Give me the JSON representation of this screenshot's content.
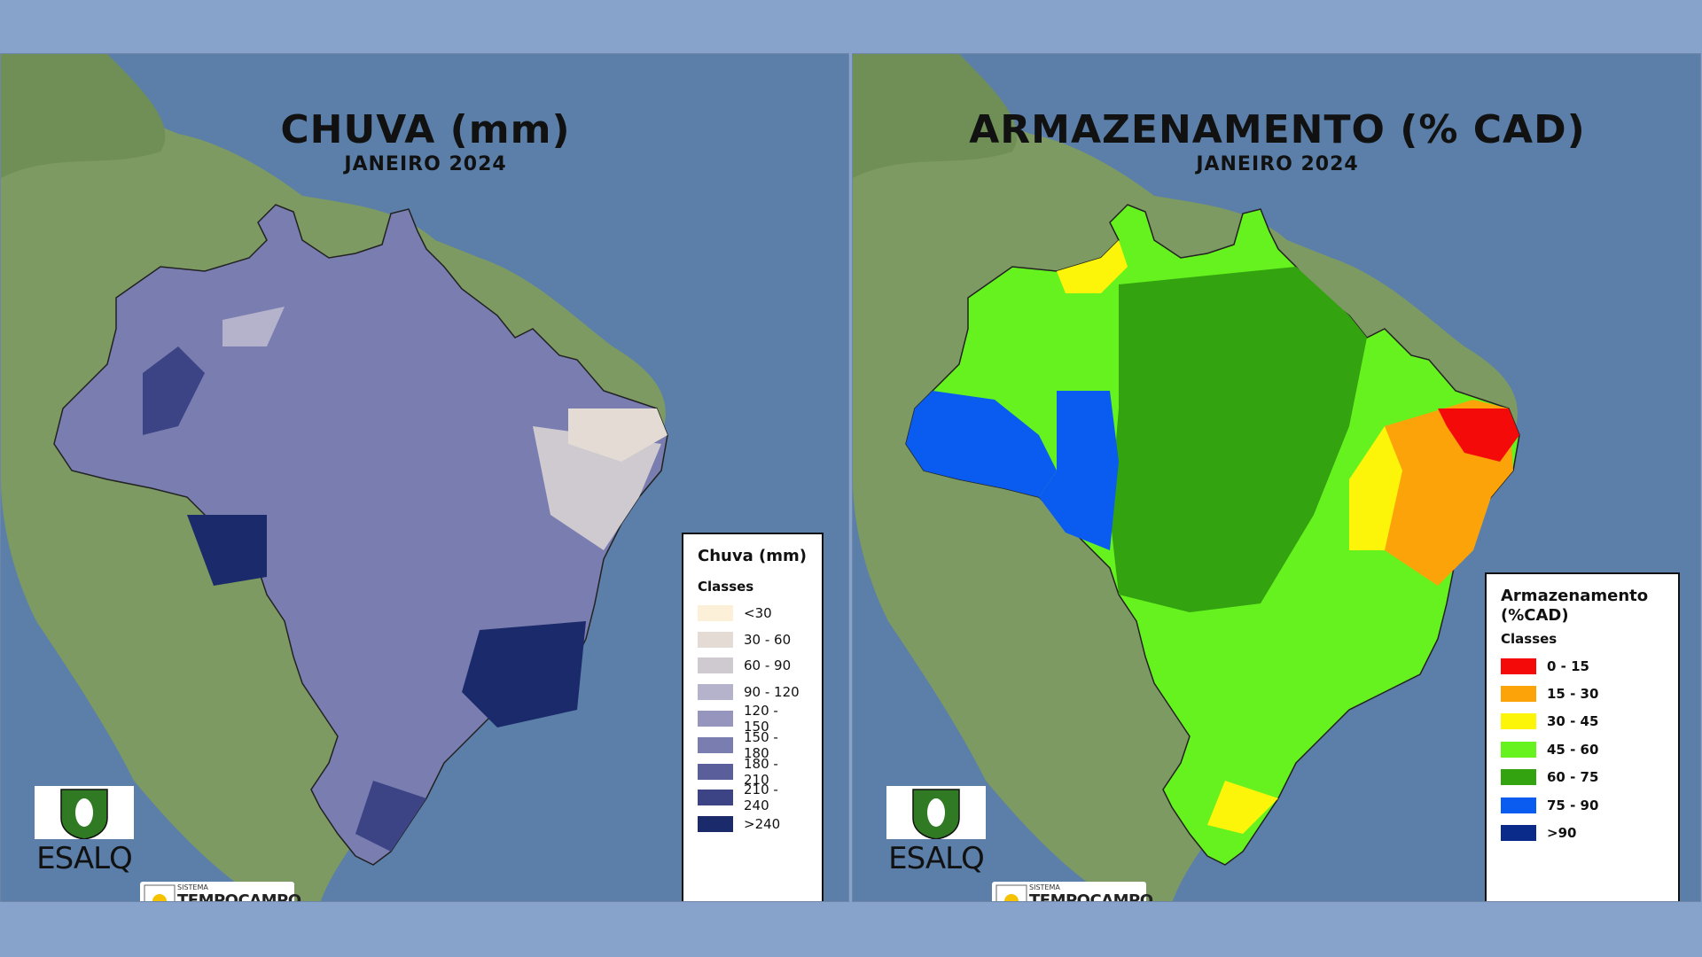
{
  "maps": [
    {
      "title": "CHUVA (mm)",
      "subtitle": "JANEIRO 2024",
      "legend": {
        "title": "Chuva (mm)",
        "classes_label": "Classes",
        "classes": [
          {
            "label": "<30",
            "color": "#fdf0d8"
          },
          {
            "label": "30 - 60",
            "color": "#e4dcd4"
          },
          {
            "label": "60 - 90",
            "color": "#cfc9d0"
          },
          {
            "label": "90 - 120",
            "color": "#b4b3cb"
          },
          {
            "label": "120 - 150",
            "color": "#9595bd"
          },
          {
            "label": "150 - 180",
            "color": "#7a7db0"
          },
          {
            "label": "180 - 210",
            "color": "#5a5e9b"
          },
          {
            "label": "210 - 240",
            "color": "#3c4486"
          },
          {
            "label": ">240",
            "color": "#1b2a6b"
          }
        ]
      }
    },
    {
      "title": "ARMAZENAMENTO (% CAD)",
      "subtitle": "JANEIRO 2024",
      "legend": {
        "title": "Armazenamento (%CAD)",
        "classes_label": "Classes",
        "classes": [
          {
            "label": "0 - 15",
            "color": "#f50a0a"
          },
          {
            "label": "15 - 30",
            "color": "#fca30a"
          },
          {
            "label": "30 - 45",
            "color": "#fcf50a"
          },
          {
            "label": "45 - 60",
            "color": "#66f21f"
          },
          {
            "label": "60 - 75",
            "color": "#33a30f"
          },
          {
            "label": "75 - 90",
            "color": "#0a5cf0"
          },
          {
            "label": ">90",
            "color": "#0a2b8a"
          }
        ]
      }
    }
  ],
  "logos": {
    "esalq": "ESALQ",
    "tempocampo_small": "SISTEMA",
    "tempocampo": "TEMPOCAMPO"
  },
  "colors": {
    "ocean": "#5d80a8",
    "land": "#8aa36c",
    "background": "#87a3cc"
  }
}
